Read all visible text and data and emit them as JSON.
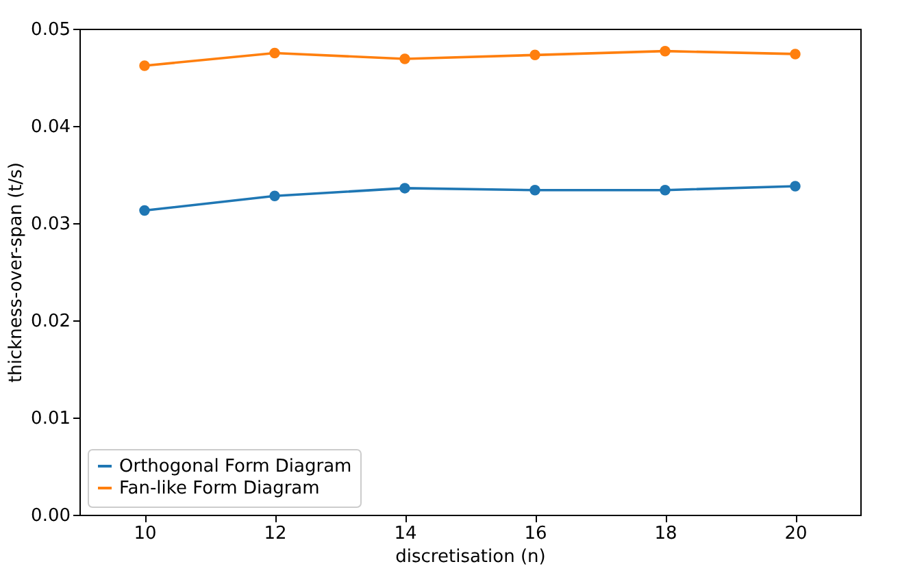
{
  "chart_data": {
    "type": "line",
    "xlabel": "discretisation (n)",
    "ylabel": "thickness-over-span (t/s)",
    "x": [
      10,
      12,
      14,
      16,
      18,
      20
    ],
    "series": [
      {
        "name": "Orthogonal Form Diagram",
        "color": "#1f77b4",
        "values": [
          0.0313,
          0.0328,
          0.0336,
          0.0334,
          0.0334,
          0.0338
        ]
      },
      {
        "name": "Fan-like Form Diagram",
        "color": "#ff7f0e",
        "values": [
          0.0462,
          0.0475,
          0.0469,
          0.0473,
          0.0477,
          0.0474
        ]
      }
    ],
    "xlim": [
      9,
      21
    ],
    "xticks": [
      10,
      12,
      14,
      16,
      18,
      20
    ],
    "ylim": [
      0,
      0.05
    ],
    "yticks": [
      {
        "value": 0,
        "label": "0.00"
      },
      {
        "value": 0.01,
        "label": "0.01"
      },
      {
        "value": 0.02,
        "label": "0.02"
      },
      {
        "value": 0.03,
        "label": "0.03"
      },
      {
        "value": 0.04,
        "label": "0.04"
      },
      {
        "value": 0.05,
        "label": "0.05"
      }
    ],
    "legend": "bottom left",
    "marker": "circle",
    "line_style": "solid",
    "grid": false
  }
}
